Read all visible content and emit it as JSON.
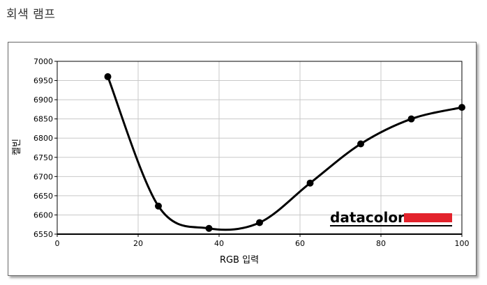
{
  "page": {
    "title": "회색 램프"
  },
  "chart_data": {
    "type": "line",
    "title": "",
    "xlabel": "RGB 입력",
    "ylabel": "켈빈",
    "xlim": [
      0,
      100
    ],
    "ylim": [
      6550,
      7000
    ],
    "xticks": [
      0,
      20,
      40,
      60,
      80,
      100
    ],
    "yticks": [
      6550,
      6600,
      6650,
      6700,
      6750,
      6800,
      6850,
      6900,
      6950,
      7000
    ],
    "grid": true,
    "legend": "none",
    "line_color": "#000000",
    "series": [
      {
        "x": [
          12.5,
          25,
          37.5,
          50,
          62.5,
          75,
          87.5,
          100
        ],
        "values": [
          6960,
          6623,
          6565,
          6580,
          6683,
          6785,
          6850,
          6880
        ]
      }
    ]
  },
  "logo": {
    "text": "datacolor",
    "bar_color": "#e3232c"
  }
}
